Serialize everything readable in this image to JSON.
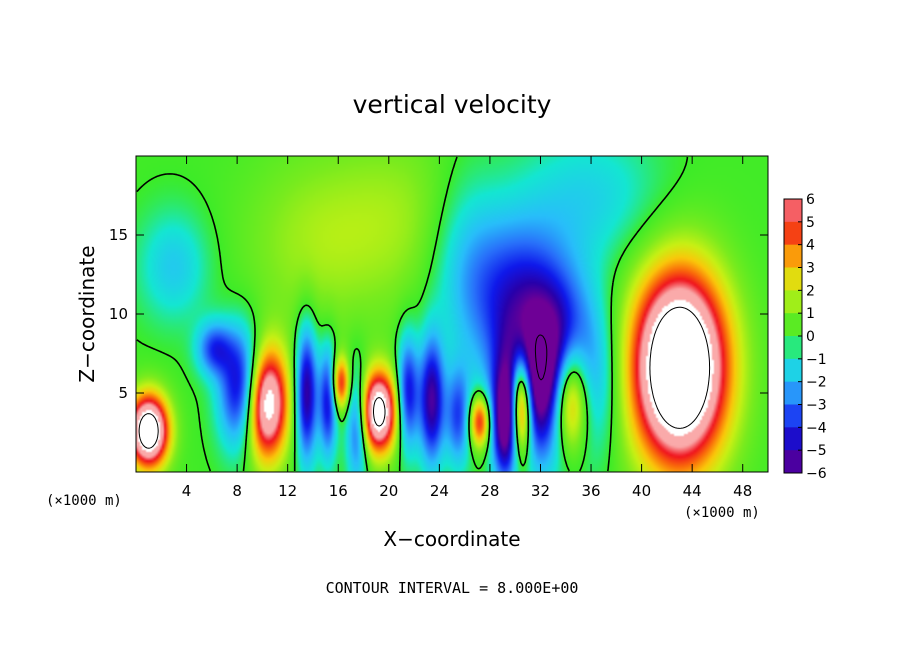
{
  "chart_data": {
    "type": "heatmap",
    "title": "vertical velocity",
    "xlabel": "X−coordinate",
    "ylabel": "Z−coordinate",
    "x_scale_note": "(×1000 m)",
    "y_scale_note": "(×1000 m)",
    "xlim": [
      0,
      50
    ],
    "ylim": [
      0,
      20
    ],
    "x_ticks": [
      {
        "value": 4,
        "label": "4"
      },
      {
        "value": 8,
        "label": "8"
      },
      {
        "value": 12,
        "label": "12"
      },
      {
        "value": 16,
        "label": "16"
      },
      {
        "value": 20,
        "label": "20"
      },
      {
        "value": 24,
        "label": "24"
      },
      {
        "value": 28,
        "label": "28"
      },
      {
        "value": 32,
        "label": "32"
      },
      {
        "value": 36,
        "label": "36"
      },
      {
        "value": 40,
        "label": "40"
      },
      {
        "value": 44,
        "label": "44"
      },
      {
        "value": 48,
        "label": "48"
      }
    ],
    "y_ticks": [
      {
        "value": 5,
        "label": "5"
      },
      {
        "value": 10,
        "label": "10"
      },
      {
        "value": 15,
        "label": "15"
      }
    ],
    "colorbar": {
      "min": -6,
      "max": 6,
      "levels": [
        {
          "value": 6,
          "label": "6"
        },
        {
          "value": 5,
          "label": "5"
        },
        {
          "value": 4,
          "label": "4"
        },
        {
          "value": 3,
          "label": "3"
        },
        {
          "value": 2,
          "label": "2"
        },
        {
          "value": 1,
          "label": "1"
        },
        {
          "value": 0,
          "label": "0"
        },
        {
          "value": -1,
          "label": "−1"
        },
        {
          "value": -2,
          "label": "−2"
        },
        {
          "value": -3,
          "label": "−3"
        },
        {
          "value": -4,
          "label": "−4"
        },
        {
          "value": -5,
          "label": "−5"
        },
        {
          "value": -6,
          "label": "−6"
        }
      ]
    },
    "features": [
      {
        "kind": "updraft",
        "x": 1,
        "z": 2.6,
        "amplitude": 10,
        "sx": 1.1,
        "sz": 1.6
      },
      {
        "kind": "downdraft",
        "x": 8.6,
        "z": 5.2,
        "amplitude": -6.5,
        "sx": 1.3,
        "sz": 2.6
      },
      {
        "kind": "updraft",
        "x": 10.2,
        "z": 4.4,
        "amplitude": 10,
        "sx": 1.2,
        "sz": 2.5
      },
      {
        "kind": "downdraft",
        "x": 6.2,
        "z": 7.8,
        "amplitude": -3.5,
        "sx": 1.0,
        "sz": 1.2
      },
      {
        "kind": "downdraft",
        "x": 13.5,
        "z": 5.0,
        "amplitude": -5.5,
        "sx": 0.6,
        "sz": 3.0
      },
      {
        "kind": "downdraft",
        "x": 15.2,
        "z": 4.5,
        "amplitude": -4.5,
        "sx": 0.5,
        "sz": 2.5
      },
      {
        "kind": "updraft",
        "x": 16.2,
        "z": 5.6,
        "amplitude": 5,
        "sx": 0.5,
        "sz": 1.2
      },
      {
        "kind": "downdraft",
        "x": 17.5,
        "z": 3.0,
        "amplitude": -4,
        "sx": 0.6,
        "sz": 2.5
      },
      {
        "kind": "updraft",
        "x": 19.2,
        "z": 3.8,
        "amplitude": 9,
        "sx": 1.0,
        "sz": 1.8
      },
      {
        "kind": "downdraft",
        "x": 21.5,
        "z": 5.0,
        "amplitude": -4.5,
        "sx": 0.6,
        "sz": 2.5
      },
      {
        "kind": "downdraft",
        "x": 23.4,
        "z": 4.5,
        "amplitude": -5.5,
        "sx": 0.7,
        "sz": 2.8
      },
      {
        "kind": "downdraft",
        "x": 25.5,
        "z": 3.5,
        "amplitude": -3.5,
        "sx": 0.7,
        "sz": 2.2
      },
      {
        "kind": "updraft",
        "x": 27.2,
        "z": 3.2,
        "amplitude": 5.5,
        "sx": 0.6,
        "sz": 1.2
      },
      {
        "kind": "downdraft",
        "x": 29.2,
        "z": 3.0,
        "amplitude": -5.5,
        "sx": 0.7,
        "sz": 2.5
      },
      {
        "kind": "updraft",
        "x": 30.5,
        "z": 4.3,
        "amplitude": 9,
        "sx": 0.6,
        "sz": 2.3
      },
      {
        "kind": "downdraft",
        "x": 32.8,
        "z": 6.0,
        "amplitude": -9,
        "sx": 2.6,
        "sz": 3.5
      },
      {
        "kind": "updraft",
        "x": 34.3,
        "z": 4.8,
        "amplitude": 9,
        "sx": 1.1,
        "sz": 2.6
      },
      {
        "kind": "downdraft",
        "x": 30.0,
        "z": 11.5,
        "amplitude": -3.5,
        "sx": 3.2,
        "sz": 3.5
      },
      {
        "kind": "updraft",
        "x": 43.0,
        "z": 6.6,
        "amplitude": 12,
        "sx": 2.6,
        "sz": 4.2
      },
      {
        "kind": "updraft",
        "x": 14.0,
        "z": 14.5,
        "amplitude": 1.3,
        "sx": 4.0,
        "sz": 4.0
      },
      {
        "kind": "updraft",
        "x": 21.0,
        "z": 16.0,
        "amplitude": 1.2,
        "sx": 4.0,
        "sz": 4.0
      },
      {
        "kind": "downdraft",
        "x": 36.0,
        "z": 17.5,
        "amplitude": -1.5,
        "sx": 4.0,
        "sz": 3.0
      },
      {
        "kind": "downdraft",
        "x": 26.0,
        "z": 14.0,
        "amplitude": -1.3,
        "sx": 2.0,
        "sz": 4.0
      },
      {
        "kind": "downdraft",
        "x": 3.0,
        "z": 13.0,
        "amplitude": -1.8,
        "sx": 2.0,
        "sz": 2.5
      }
    ],
    "legend": "colorbar right",
    "grid": false
  },
  "footer": {
    "contour_interval": "CONTOUR INTERVAL = 8.000E+00"
  }
}
